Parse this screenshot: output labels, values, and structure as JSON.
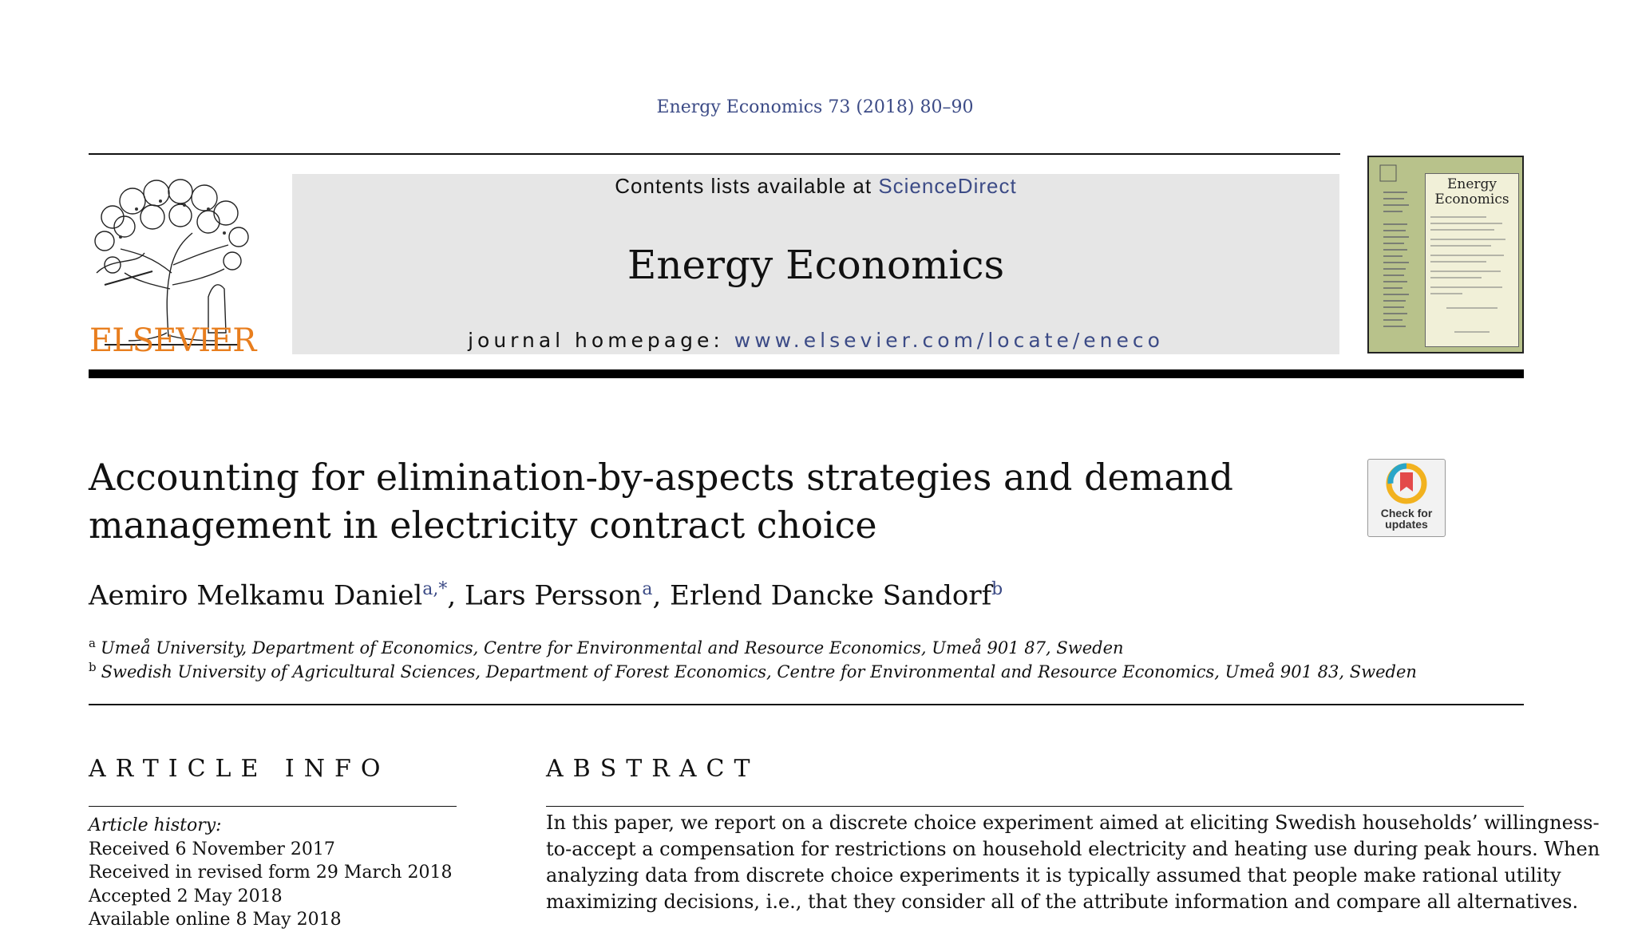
{
  "header": {
    "citation": "Energy Economics 73 (2018) 80–90",
    "contents_prefix": "Contents lists available at ",
    "contents_link": "ScienceDirect",
    "journal_title": "Energy Economics",
    "homepage_prefix": "journal homepage: ",
    "homepage_link": "www.elsevier.com/locate/eneco",
    "publisher_logo_text": "ELSEVIER",
    "cover_title_line1": "Energy",
    "cover_title_line2": "Economics",
    "colors": {
      "publisher_orange": "#e87e1e",
      "link_blue": "#3c4b86",
      "banner_gray": "#e6e6e6",
      "cover_green": "#b8c28b"
    }
  },
  "article": {
    "title_line1": "Accounting for elimination-by-aspects strategies and demand",
    "title_line2": "management in electricity contract choice",
    "badge_line1": "Check for",
    "badge_line2": "updates",
    "authors": [
      {
        "name": "Aemiro Melkamu Daniel",
        "sup": "a,*"
      },
      {
        "name": "Lars Persson",
        "sup": "a"
      },
      {
        "name": "Erlend Dancke Sandorf",
        "sup": "b"
      }
    ],
    "affiliations": [
      {
        "mark": "a",
        "text": "Umeå University, Department of Economics, Centre for Environmental and Resource Economics, Umeå 901 87, Sweden"
      },
      {
        "mark": "b",
        "text": "Swedish University of Agricultural Sciences, Department of Forest Economics, Centre for Environmental and Resource Economics, Umeå 901 83, Sweden"
      }
    ]
  },
  "article_info": {
    "heading": "ARTICLE INFO",
    "history_label": "Article history:",
    "history": [
      "Received 6 November 2017",
      "Received in revised form 29 March 2018",
      "Accepted 2 May 2018",
      "Available online 8 May 2018"
    ]
  },
  "abstract": {
    "heading": "ABSTRACT",
    "lines": [
      "In this paper, we report on a discrete choice experiment aimed at eliciting Swedish households’ willingness-",
      "to-accept a compensation for restrictions on household electricity and heating use during peak hours. When",
      "analyzing data from discrete choice experiments it is typically assumed that people make rational utility",
      "maximizing decisions, i.e., that they consider all of the attribute information and compare all alternatives."
    ]
  }
}
